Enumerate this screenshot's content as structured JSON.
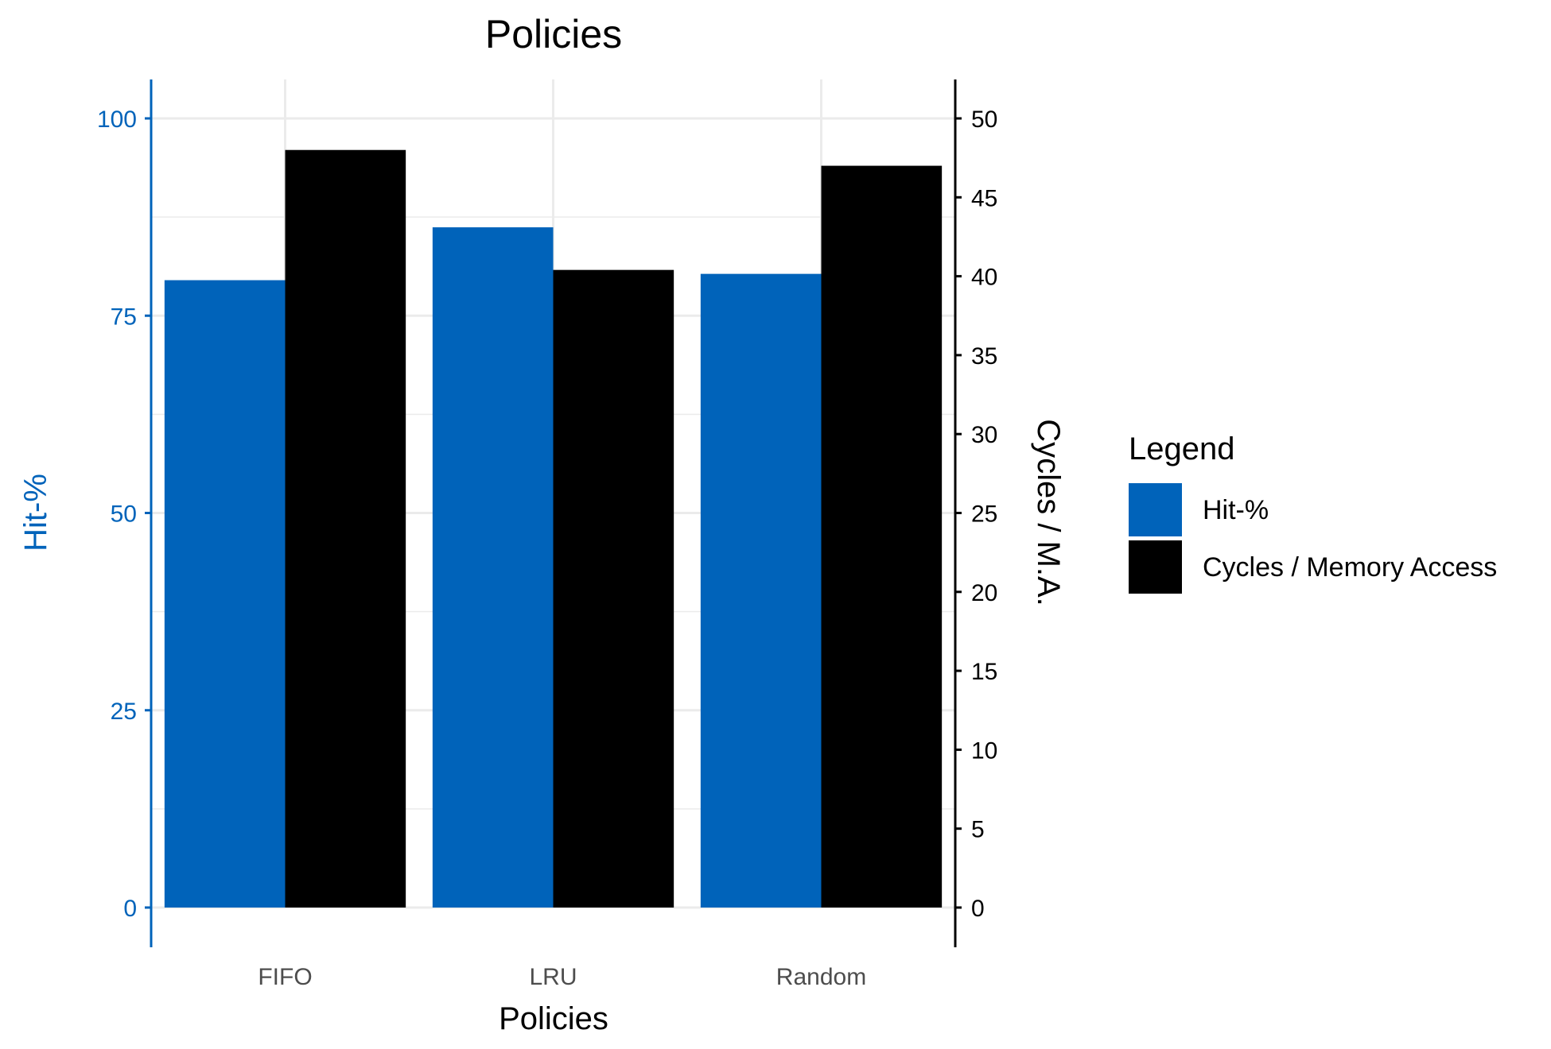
{
  "chart_data": {
    "type": "bar",
    "title": "Policies",
    "xlabel": "Policies",
    "ylabel": "Hit-%",
    "y2label": "Cycles / M.A.",
    "categories": [
      "FIFO",
      "LRU",
      "Random"
    ],
    "series": [
      {
        "name": "Hit-%",
        "axis": "left",
        "color": "#0063BA",
        "values": [
          79.5,
          86.2,
          80.3
        ]
      },
      {
        "name": "Cycles / Memory Access",
        "axis": "right",
        "color": "#000000",
        "values": [
          48.0,
          40.4,
          47.0
        ]
      }
    ],
    "ylim": [
      0,
      100
    ],
    "y2lim": [
      0,
      50
    ],
    "yticks": [
      "0",
      "25",
      "50",
      "75",
      "100"
    ],
    "y2ticks": [
      "0",
      "5",
      "10",
      "15",
      "20",
      "25",
      "30",
      "35",
      "40",
      "45",
      "50"
    ],
    "legend": {
      "title": "Legend",
      "placement": "right"
    },
    "grid": true,
    "colors": {
      "left_axis": "#0063BA",
      "right_axis": "#000000",
      "grid": "#EBEBEB"
    }
  }
}
